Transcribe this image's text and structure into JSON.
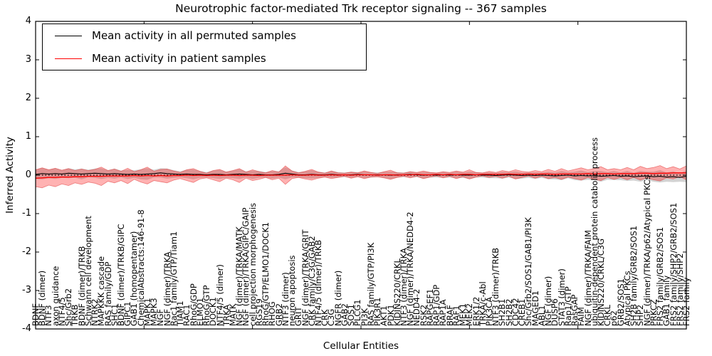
{
  "figure": {
    "title": "Neurotrophic factor-mediated Trk receptor signaling -- 367 samples",
    "xlabel": "Cellular Entities",
    "ylabel": "Inferred Activity",
    "y_tick_values": [
      4,
      3,
      2,
      1,
      0,
      -1,
      -2,
      -3,
      -4
    ],
    "y_tick_labels": [
      "4",
      "3",
      "2",
      "1",
      "0",
      "-1",
      "-2",
      "-3",
      "-4"
    ],
    "colors": {
      "frame": "#000000",
      "permuted_line": "#000000",
      "patient_line": "#ff0000",
      "permuted_band": "rgba(128,128,128,0.35)",
      "patient_band": "rgba(255,0,0,0.30)",
      "patient_band_edge": "rgba(220,30,30,0.5)",
      "zero_line": "#000000"
    }
  },
  "chart_data": {
    "type": "line",
    "title": "Neurotrophic factor-mediated Trk receptor signaling -- 367 samples",
    "xlabel": "Cellular Entities",
    "ylabel": "Inferred Activity",
    "ylim": [
      -4,
      4
    ],
    "grid": false,
    "legend_position": "upper left",
    "zero_line": true,
    "categories": [
      "BDNF",
      "BDNF (dimer)",
      "NTF3",
      "axon guidance",
      "NTF4/5",
      "Shc/Grb2",
      "TRKB",
      "BDNF (dimer)/TRKB",
      "Schwann cell development",
      "NTRK2",
      "MAPKKK cascade",
      "RAS family/GDP",
      "SHC1",
      "BDNF (dimer)/TRKB/GIPC",
      "GIPC1",
      "GAB1 (homopentamer)",
      "ChemicalAbstracts:146-91-8",
      "MAPK1",
      "MAPK3",
      "NGF",
      "NGF (dimer)/TRKA",
      "Rac1 family/GTP/Tiam1",
      "TIAM1",
      "RAC1",
      "RhoG/GDP",
      "ELMO1",
      "RhoG/GTP",
      "DOCK1",
      "NTF4/5 (dimer)",
      "TRKA",
      "MATK",
      "NGF (dimer)/TRKA/MATK",
      "NGF (dimer)/TRKA/GIPC/GAIP",
      "cell projection morphogenesis",
      "RGS19",
      "RhoG/GTP/ELMO1/DOCK1",
      "RHOG",
      "GRB2",
      "NTF3 (dimer)",
      "neuron apoptosis",
      "GRIT",
      "NGF (dimer)/TRKA/GRIT",
      "CRK family/C3G/GAB2",
      "NTF4/5 (dimer)/TRKB",
      "CRK",
      "C3G",
      "NGFR (dimer)",
      "GAB2",
      "SOS1",
      "PLCG1",
      "PI3K",
      "RAS family/GTP/PI3K",
      "PIK3R1",
      "AKT1",
      "PDK1",
      "KIDINS220/CRKL",
      "NTF3 (dimer)/TRKA",
      "NGF (dimer)/TRKA/NEDD4-2",
      "NEDD4-2",
      "RSK2",
      "RAPGEF1",
      "RAP1/GDP",
      "RAP1A",
      "BRAF",
      "RAF1",
      "MEK1",
      "MEK2",
      "ERK1/2",
      "TRKA/c-Abl",
      "PIK3CA",
      "NTF3 (dimer)/TRKB",
      "SH2B1",
      "SH2B2",
      "CDC42",
      "CREB1",
      "Shc/Grb2/SOS1/GAB1/PI3K",
      "MAGED1",
      "ABL1",
      "NGF (dimer)",
      "DUSP6",
      "STAT3 (dimer)",
      "Rap1/GTP",
      "RasGAP",
      "FAIM",
      "NGF (dimer)/TRKA/FAIM",
      "ubiquitin-dependent protein catabolic process",
      "KIDINS220/CRKL/C3G",
      "CRKL",
      "p62",
      "GRB2/SOS1",
      "Atypical PKCs",
      "SH2B family/GRB2/SOS1",
      "SHP2",
      "NGF (dimer)/TRKA/p62/Atypical PKCs",
      "PRKCZ",
      "FRS2 family/GRB2/SOS1",
      "GAB1 family",
      "FRS2 family/SHP2/GRB2/SOS1",
      "FRS2 family/SHP2",
      "FRS2 family"
    ],
    "series": [
      {
        "name": "Mean activity in all permuted samples",
        "color": "#000000",
        "values": [
          0.02,
          0.04,
          0.03,
          0.04,
          0.03,
          0.05,
          0.04,
          0.03,
          0.04,
          0.05,
          0.04,
          0.03,
          0.04,
          0.03,
          0.02,
          0.03,
          0.02,
          0.03,
          0.04,
          0.06,
          0.04,
          0.03,
          0.02,
          0.03,
          0.02,
          0.02,
          0.01,
          0.02,
          0.02,
          0.01,
          0.02,
          0.03,
          0.02,
          0.01,
          0.02,
          0.01,
          0.01,
          0.02,
          0.05,
          0.03,
          0.01,
          0.01,
          0.02,
          0.01,
          0.01,
          0.02,
          0.01,
          0.01,
          0.01,
          0.02,
          0.01,
          0.01,
          0.01,
          0.01,
          0.0,
          0.01,
          0.01,
          0.02,
          0.01,
          0.0,
          0.01,
          0.0,
          0.01,
          0.0,
          0.01,
          0.0,
          0.0,
          0.01,
          0.0,
          0.0,
          -0.01,
          0.0,
          0.01,
          0.0,
          -0.01,
          0.0,
          -0.01,
          0.0,
          -0.01,
          -0.02,
          -0.01,
          0.0,
          -0.02,
          -0.01,
          -0.02,
          -0.01,
          -0.03,
          -0.02,
          -0.01,
          -0.03,
          -0.02,
          -0.04,
          -0.03,
          -0.02,
          -0.04,
          -0.03,
          -0.05,
          -0.04,
          -0.06,
          -0.03
        ],
        "band_halfwidth": [
          0.12,
          0.15,
          0.11,
          0.14,
          0.1,
          0.13,
          0.11,
          0.14,
          0.1,
          0.12,
          0.14,
          0.1,
          0.13,
          0.09,
          0.12,
          0.1,
          0.13,
          0.15,
          0.1,
          0.12,
          0.13,
          0.1,
          0.08,
          0.11,
          0.13,
          0.09,
          0.07,
          0.1,
          0.12,
          0.08,
          0.1,
          0.13,
          0.08,
          0.11,
          0.09,
          0.07,
          0.1,
          0.08,
          0.16,
          0.09,
          0.07,
          0.09,
          0.11,
          0.08,
          0.06,
          0.09,
          0.07,
          0.06,
          0.08,
          0.06,
          0.09,
          0.07,
          0.06,
          0.08,
          0.1,
          0.07,
          0.06,
          0.08,
          0.06,
          0.09,
          0.07,
          0.06,
          0.08,
          0.06,
          0.09,
          0.07,
          0.1,
          0.07,
          0.06,
          0.08,
          0.07,
          0.09,
          0.07,
          0.1,
          0.08,
          0.07,
          0.09,
          0.07,
          0.1,
          0.09,
          0.12,
          0.08,
          0.11,
          0.13,
          0.1,
          0.12,
          0.14,
          0.1,
          0.12,
          0.1,
          0.13,
          0.1,
          0.14,
          0.11,
          0.13,
          0.16,
          0.12,
          0.14,
          0.11,
          0.15
        ]
      },
      {
        "name": "Mean activity in patient samples",
        "color": "#ff0000",
        "values": [
          -0.08,
          -0.07,
          -0.06,
          -0.06,
          -0.05,
          -0.05,
          -0.04,
          -0.04,
          -0.03,
          -0.03,
          -0.03,
          -0.02,
          -0.02,
          -0.02,
          -0.02,
          -0.01,
          -0.02,
          -0.01,
          -0.02,
          -0.01,
          -0.02,
          -0.01,
          -0.01,
          0.0,
          -0.01,
          0.0,
          -0.01,
          0.0,
          -0.01,
          0.0,
          0.0,
          -0.01,
          0.0,
          0.0,
          -0.01,
          0.0,
          0.0,
          0.0,
          0.0,
          0.01,
          0.0,
          0.0,
          0.01,
          0.0,
          0.0,
          0.01,
          0.0,
          0.01,
          0.0,
          0.01,
          0.01,
          0.01,
          0.0,
          0.01,
          0.01,
          0.0,
          0.01,
          0.01,
          0.02,
          0.01,
          0.01,
          0.02,
          0.01,
          0.02,
          0.01,
          0.02,
          0.02,
          0.01,
          0.02,
          0.02,
          0.02,
          0.02,
          0.03,
          0.02,
          0.02,
          0.03,
          0.02,
          0.03,
          0.03,
          0.02,
          0.03,
          0.03,
          0.03,
          0.03,
          0.04,
          0.03,
          0.04,
          0.04,
          0.03,
          0.04,
          0.04,
          0.04,
          0.05,
          0.05,
          0.04,
          0.05,
          0.05,
          0.06,
          0.06,
          0.06
        ],
        "band_halfwidth": [
          0.22,
          0.26,
          0.2,
          0.24,
          0.18,
          0.22,
          0.16,
          0.2,
          0.15,
          0.18,
          0.24,
          0.14,
          0.18,
          0.12,
          0.2,
          0.1,
          0.16,
          0.22,
          0.12,
          0.16,
          0.18,
          0.12,
          0.08,
          0.14,
          0.18,
          0.1,
          0.06,
          0.12,
          0.16,
          0.08,
          0.12,
          0.18,
          0.08,
          0.14,
          0.1,
          0.06,
          0.12,
          0.08,
          0.24,
          0.1,
          0.06,
          0.1,
          0.14,
          0.08,
          0.05,
          0.1,
          0.06,
          0.04,
          0.08,
          0.05,
          0.1,
          0.06,
          0.04,
          0.08,
          0.12,
          0.06,
          0.04,
          0.08,
          0.05,
          0.1,
          0.06,
          0.04,
          0.08,
          0.05,
          0.1,
          0.06,
          0.12,
          0.06,
          0.04,
          0.08,
          0.05,
          0.1,
          0.06,
          0.12,
          0.08,
          0.05,
          0.1,
          0.06,
          0.12,
          0.08,
          0.14,
          0.08,
          0.12,
          0.16,
          0.1,
          0.14,
          0.18,
          0.1,
          0.14,
          0.1,
          0.16,
          0.1,
          0.18,
          0.12,
          0.16,
          0.2,
          0.12,
          0.16,
          0.1,
          0.18
        ]
      }
    ]
  }
}
